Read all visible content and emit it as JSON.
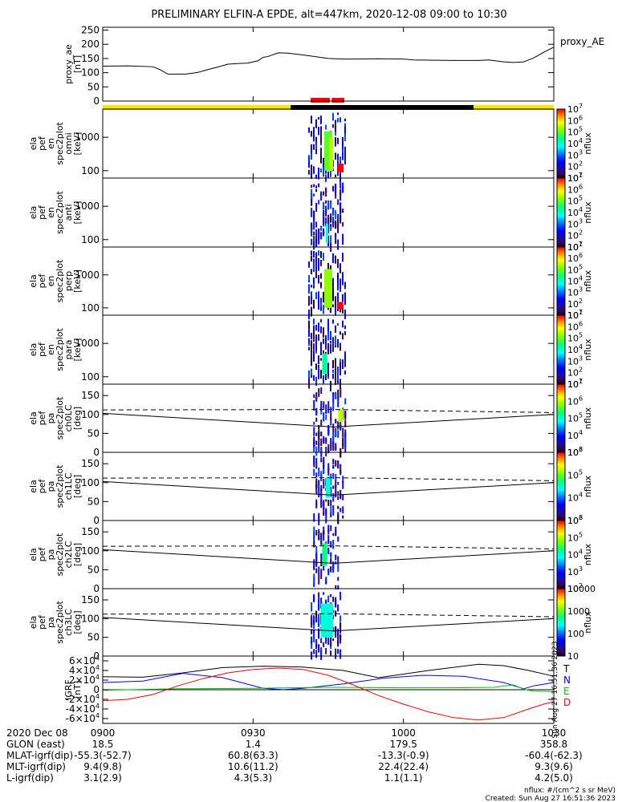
{
  "title": "PRELIMINARY ELFIN-A EPDE, alt=447km, 2020-12-08 09:00 to 10:30",
  "colors": {
    "yellow_bar": "#ffe400",
    "black_bar": "#000000",
    "red_marker": "#ff0000",
    "igrf_T": "#000000",
    "igrf_N": "#0000ff",
    "igrf_E": "#00c000",
    "igrf_D": "#ff0000"
  },
  "time_axis": {
    "start": "09:00",
    "end": "10:30",
    "ticks": [
      "0900",
      "0930",
      "1000",
      "1030"
    ],
    "tick_minutes": [
      0,
      30,
      60,
      90
    ]
  },
  "status_bar": {
    "segments": [
      {
        "start_min": 0,
        "end_min": 37.5,
        "color": "yellow"
      },
      {
        "start_min": 37.5,
        "end_min": 74,
        "color": "black"
      },
      {
        "start_min": 74,
        "end_min": 90,
        "color": "yellow"
      }
    ],
    "markers": [
      {
        "start_min": 41.5,
        "end_min": 45.3
      },
      {
        "start_min": 45.7,
        "end_min": 48.2
      }
    ]
  },
  "timestamp_side": "Sun Aug 27 16:51:36 2023",
  "footer": {
    "rows": [
      {
        "label": "2020 Dec 08",
        "values": [
          "0900",
          "0930",
          "1000",
          "1030"
        ]
      },
      {
        "label": "GLON (east)",
        "values": [
          "18.5",
          "1.4",
          "179.5",
          "358.8"
        ]
      },
      {
        "label": "MLAT-igrf(dip)",
        "values": [
          "-55.3(-52.7)",
          "60.8(63.3)",
          "-13.3(-0.9)",
          "-60.4(-62.3)"
        ]
      },
      {
        "label": "MLT-igrf(dip)",
        "values": [
          "9.4(9.8)",
          "10.6(11.2)",
          "22.4(22.4)",
          "9.3(9.6)"
        ]
      },
      {
        "label": "L-igrf(dip)",
        "values": [
          "3.1(2.9)",
          "4.3(5.3)",
          "1.1(1.1)",
          "4.2(5.0)"
        ]
      }
    ],
    "units_note": "nflux: #/(cm^2 s sr MeV)",
    "created": "Created: Sun Aug 27 16:51:36 2023"
  },
  "chart_data": [
    {
      "type": "line",
      "id": "proxy_ae",
      "ylabel": [
        "proxy_ae",
        "[nT]"
      ],
      "legend": "proxy_AE",
      "ylim": [
        0,
        260
      ],
      "yticks": [
        0,
        50,
        100,
        150,
        200,
        250
      ],
      "x_minutes": [
        0,
        5,
        10,
        11.5,
        13,
        16.5,
        17.5,
        19,
        21,
        23,
        25,
        27,
        29,
        31,
        32,
        33,
        35,
        37,
        41,
        45,
        48,
        50,
        55,
        60,
        62,
        65,
        70,
        73,
        75,
        77,
        80,
        82,
        84,
        86,
        88,
        90
      ],
      "values": [
        123,
        124,
        121,
        110,
        95,
        95,
        97,
        101,
        111,
        120,
        130,
        132,
        134,
        142,
        154,
        157,
        170,
        169,
        160,
        150,
        148,
        148,
        149,
        148,
        145,
        144,
        143,
        143,
        143,
        145,
        138,
        136,
        138,
        152,
        172,
        190
      ]
    },
    {
      "type": "heatmap",
      "id": "en_omni",
      "ylabel": [
        "ela",
        "pef",
        "en",
        "spec2plot",
        "omni",
        "[keV]"
      ],
      "yscale": "log",
      "ylim": [
        60,
        7000
      ],
      "yticks": [
        100,
        1000
      ],
      "colorbar": {
        "ticks": [
          "10^1",
          "10^2",
          "10^3",
          "10^4",
          "10^5",
          "10^6",
          "10^7"
        ],
        "label": "nflux",
        "scale": "log",
        "range": [
          10,
          10000000
        ]
      },
      "active_minutes": [
        [
          41.0,
          48.5
        ]
      ],
      "blocks": [
        {
          "t0": 44.2,
          "t1": 45.8,
          "e0": 100,
          "e1": 1500,
          "value": 100000
        },
        {
          "t0": 45.2,
          "t1": 46.0,
          "e0": 100,
          "e1": 1000,
          "value": 300000
        },
        {
          "t0": 46.8,
          "t1": 48.0,
          "e0": 90,
          "e1": 160,
          "value": 10000000
        }
      ]
    },
    {
      "type": "heatmap",
      "id": "en_anti",
      "ylabel": [
        "ela",
        "pef",
        "en",
        "spec2plot",
        "anti",
        "[keV]"
      ],
      "yscale": "log",
      "ylim": [
        60,
        7000
      ],
      "yticks": [
        100,
        1000
      ],
      "colorbar": {
        "ticks": [
          "10^1",
          "10^2",
          "10^3",
          "10^4",
          "10^5",
          "10^6",
          "10^7"
        ],
        "label": "nflux",
        "scale": "log",
        "range": [
          10,
          10000000
        ]
      },
      "active_minutes": [
        [
          41.5,
          48.0
        ]
      ],
      "blocks": [
        {
          "t0": 44.5,
          "t1": 45.0,
          "e0": 80,
          "e1": 300,
          "value": 10000
        }
      ]
    },
    {
      "type": "heatmap",
      "id": "en_perp",
      "ylabel": [
        "ela",
        "pef",
        "en",
        "spec2plot",
        "perp",
        "[keV]"
      ],
      "yscale": "log",
      "ylim": [
        60,
        7000
      ],
      "yticks": [
        100,
        1000
      ],
      "colorbar": {
        "ticks": [
          "10^1",
          "10^2",
          "10^3",
          "10^4",
          "10^5",
          "10^6",
          "10^7"
        ],
        "label": "nflux",
        "scale": "log",
        "range": [
          10,
          10000000
        ]
      },
      "active_minutes": [
        [
          41.0,
          48.5
        ]
      ],
      "blocks": [
        {
          "t0": 44.2,
          "t1": 45.8,
          "e0": 100,
          "e1": 1500,
          "value": 200000
        },
        {
          "t0": 46.8,
          "t1": 48.0,
          "e0": 90,
          "e1": 150,
          "value": 10000000
        }
      ]
    },
    {
      "type": "heatmap",
      "id": "en_para",
      "ylabel": [
        "ela",
        "pef",
        "en",
        "spec2plot",
        "para",
        "[keV]"
      ],
      "yscale": "log",
      "ylim": [
        60,
        7000
      ],
      "yticks": [
        100,
        1000
      ],
      "colorbar": {
        "ticks": [
          "10^1",
          "10^2",
          "10^3",
          "10^4",
          "10^5",
          "10^6",
          "10^7"
        ],
        "label": "nflux",
        "scale": "log",
        "range": [
          10,
          10000000
        ]
      },
      "active_minutes": [
        [
          41.0,
          48.5
        ]
      ],
      "blocks": [
        {
          "t0": 43.8,
          "t1": 44.8,
          "e0": 120,
          "e1": 500,
          "value": 20000
        }
      ]
    },
    {
      "type": "heatmap",
      "id": "pa_ch0",
      "ylabel": [
        "ela",
        "pef",
        "pa",
        "spec2plot",
        "ch0LC",
        "[deg]"
      ],
      "ylim": [
        0,
        180
      ],
      "yticks": [
        0,
        50,
        100,
        150
      ],
      "colorbar": {
        "ticks": [
          "10^3",
          "10^4",
          "10^5",
          "10^6",
          "10^7"
        ],
        "label": "nflux",
        "scale": "log",
        "range": [
          1000,
          10000000
        ]
      },
      "active_minutes": [
        [
          42.0,
          48.5
        ]
      ],
      "blocks": [
        {
          "t0": 47.0,
          "t1": 48.0,
          "e0": 80,
          "e1": 115,
          "value": 1000000
        }
      ],
      "loss_cone_solid": {
        "x_minutes": [
          0,
          46,
          90
        ],
        "values": [
          103,
          67,
          100
        ]
      },
      "loss_cone_dashed": {
        "x_minutes": [
          0,
          46,
          90
        ],
        "values": [
          112,
          113,
          105
        ]
      }
    },
    {
      "type": "heatmap",
      "id": "pa_ch1",
      "ylabel": [
        "ela",
        "pef",
        "pa",
        "spec2plot",
        "ch1LC",
        "[deg]"
      ],
      "ylim": [
        0,
        180
      ],
      "yticks": [
        0,
        50,
        100,
        150
      ],
      "colorbar": {
        "ticks": [
          "10^3",
          "10^4",
          "10^5",
          "10^6"
        ],
        "label": "nflux",
        "scale": "log",
        "range": [
          1000,
          1000000
        ]
      },
      "active_minutes": [
        [
          42.0,
          48.0
        ]
      ],
      "blocks": [
        {
          "t0": 44.5,
          "t1": 45.5,
          "e0": 60,
          "e1": 115,
          "value": 30000
        }
      ],
      "loss_cone_solid": {
        "x_minutes": [
          0,
          46,
          90
        ],
        "values": [
          103,
          67,
          100
        ]
      },
      "loss_cone_dashed": {
        "x_minutes": [
          0,
          46,
          90
        ],
        "values": [
          112,
          113,
          105
        ]
      }
    },
    {
      "type": "heatmap",
      "id": "pa_ch2",
      "ylabel": [
        "ela",
        "pef",
        "pa",
        "spec2plot",
        "ch2LC",
        "[deg]"
      ],
      "ylim": [
        0,
        180
      ],
      "yticks": [
        0,
        50,
        100,
        150
      ],
      "colorbar": {
        "ticks": [
          "10^2",
          "10^3",
          "10^4",
          "10^5",
          "10^6"
        ],
        "label": "nflux",
        "scale": "log",
        "range": [
          100,
          1000000
        ]
      },
      "active_minutes": [
        [
          42.0,
          47.0
        ]
      ],
      "blocks": [
        {
          "t0": 43.8,
          "t1": 44.8,
          "e0": 60,
          "e1": 120,
          "value": 20000
        }
      ],
      "loss_cone_solid": {
        "x_minutes": [
          0,
          46,
          90
        ],
        "values": [
          103,
          67,
          100
        ]
      },
      "loss_cone_dashed": {
        "x_minutes": [
          0,
          46,
          90
        ],
        "values": [
          112,
          113,
          105
        ]
      }
    },
    {
      "type": "heatmap",
      "id": "pa_ch3",
      "ylabel": [
        "ela",
        "pef",
        "pa",
        "spec2plot",
        "ch3LC",
        "[deg]"
      ],
      "ylim": [
        0,
        180
      ],
      "yticks": [
        0,
        50,
        100,
        150
      ],
      "colorbar": {
        "ticks": [
          "10",
          "100",
          "1000",
          "10000"
        ],
        "label": "nflux",
        "scale": "log",
        "range": [
          10,
          10000
        ]
      },
      "active_minutes": [
        [
          41.5,
          47.5
        ]
      ],
      "blocks": [
        {
          "t0": 43.5,
          "t1": 46.0,
          "e0": 50,
          "e1": 140,
          "value": 300
        }
      ],
      "loss_cone_solid": {
        "x_minutes": [
          0,
          46,
          90
        ],
        "values": [
          103,
          67,
          100
        ]
      },
      "loss_cone_dashed": {
        "x_minutes": [
          0,
          46,
          90
        ],
        "values": [
          112,
          113,
          105
        ]
      }
    },
    {
      "type": "line",
      "id": "igrf",
      "ylabel": [
        "IGRF",
        "[nT]"
      ],
      "ylim": [
        -70000,
        70000
      ],
      "yticks": [
        -60000,
        -40000,
        -20000,
        0,
        20000,
        40000,
        60000
      ],
      "ytick_labels": [
        "-6×10⁴",
        "-4×10⁴",
        "-2×10⁴",
        "0",
        "2×10⁴",
        "4×10⁴",
        "6×10⁴"
      ],
      "series": [
        {
          "name": "T",
          "x_minutes": [
            0,
            8,
            16,
            24,
            32,
            40,
            48,
            55,
            65,
            75,
            80,
            85,
            90
          ],
          "values": [
            27000,
            26000,
            35000,
            46000,
            49000,
            47000,
            40000,
            25000,
            40000,
            53000,
            50000,
            40000,
            28000
          ]
        },
        {
          "name": "N",
          "x_minutes": [
            0,
            8,
            16,
            24,
            32,
            36,
            40,
            48,
            56,
            64,
            72,
            80,
            84,
            86,
            90
          ],
          "values": [
            15000,
            18000,
            34000,
            25000,
            3000,
            200,
            3000,
            12000,
            24000,
            30000,
            28000,
            15000,
            2000,
            8000,
            15000
          ]
        },
        {
          "name": "E",
          "x_minutes": [
            0,
            15,
            30,
            45,
            60,
            70,
            78,
            82,
            84,
            86,
            90
          ],
          "values": [
            -1000,
            2000,
            3000,
            5000,
            4000,
            4000,
            5000,
            10000,
            1000,
            -3000,
            -4000
          ]
        },
        {
          "name": "D",
          "x_minutes": [
            0,
            5,
            10,
            15,
            20,
            25,
            30,
            35,
            40,
            45,
            50,
            55,
            60,
            65,
            70,
            75,
            80,
            85,
            88,
            90
          ],
          "values": [
            -23000,
            -20000,
            -10000,
            8000,
            23000,
            35000,
            42000,
            45000,
            42000,
            30000,
            10000,
            -12000,
            -30000,
            -46000,
            -58000,
            -63000,
            -58000,
            -40000,
            -30000,
            -25000
          ]
        }
      ]
    }
  ]
}
